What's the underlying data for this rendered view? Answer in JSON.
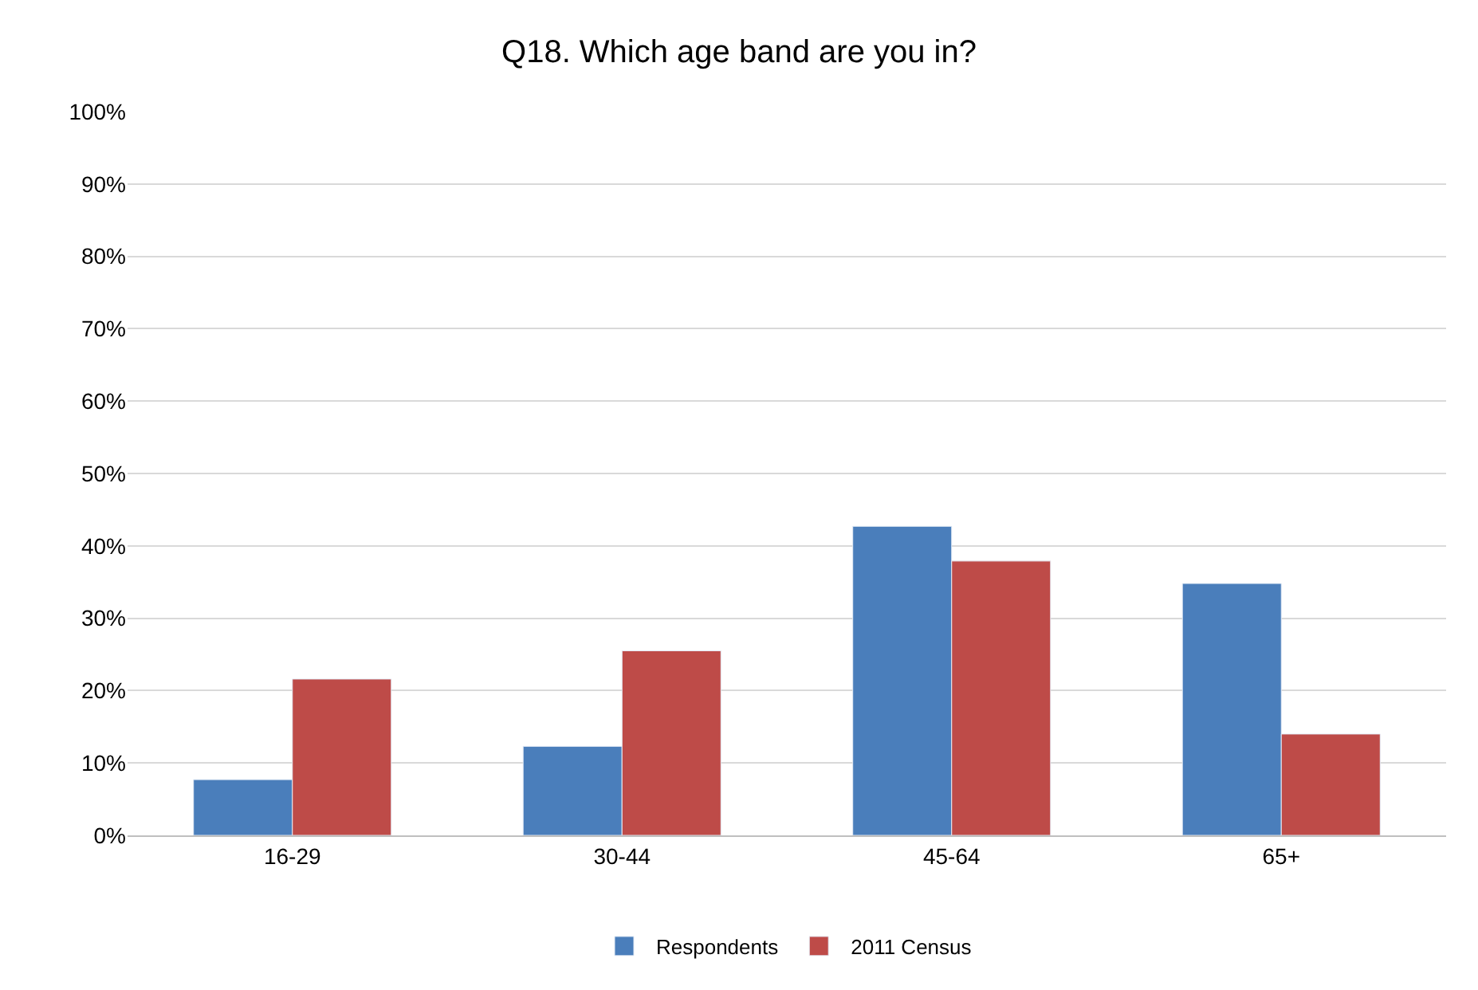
{
  "chart_data": {
    "type": "bar",
    "title": "Q18. Which age band are you in?",
    "categories": [
      "16-29",
      "30-44",
      "45-64",
      "65+"
    ],
    "series": [
      {
        "name": "Respondents",
        "color": "#4a7ebb",
        "values": [
          7.7,
          12.3,
          42.7,
          34.8
        ]
      },
      {
        "name": "2011 Census",
        "color": "#be4b48",
        "values": [
          21.6,
          25.5,
          37.9,
          14.0
        ]
      }
    ],
    "ylim": [
      0,
      100
    ],
    "yticks": [
      {
        "value": 0,
        "label": "0%"
      },
      {
        "value": 10,
        "label": "10%"
      },
      {
        "value": 20,
        "label": "20%"
      },
      {
        "value": 30,
        "label": "30%"
      },
      {
        "value": 40,
        "label": "40%"
      },
      {
        "value": 50,
        "label": "50%"
      },
      {
        "value": 60,
        "label": "60%"
      },
      {
        "value": 70,
        "label": "70%"
      },
      {
        "value": 80,
        "label": "80%"
      },
      {
        "value": 90,
        "label": "90%"
      },
      {
        "value": 100,
        "label": "100%"
      }
    ],
    "grid": "y",
    "legend": "bottom"
  }
}
